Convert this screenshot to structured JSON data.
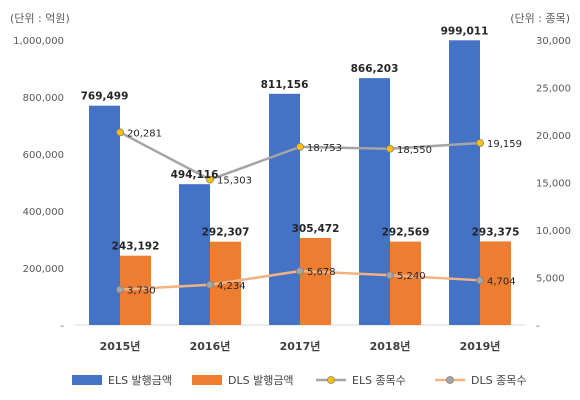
{
  "chart_data": {
    "type": "bar",
    "categories": [
      "2015년",
      "2016년",
      "2017년",
      "2018년",
      "2019년"
    ],
    "left_axis": {
      "unit_label": "(단위 : 억원)",
      "range": [
        0,
        1000000
      ],
      "ticks": [
        {
          "value": 0,
          "label": "-"
        },
        {
          "value": 200000,
          "label": "200,000"
        },
        {
          "value": 400000,
          "label": "400,000"
        },
        {
          "value": 600000,
          "label": "600,000"
        },
        {
          "value": 800000,
          "label": "800,000"
        },
        {
          "value": 1000000,
          "label": "1,000,000"
        }
      ]
    },
    "right_axis": {
      "unit_label": "(단위 : 종목)",
      "range": [
        0,
        30000
      ],
      "ticks": [
        {
          "value": 0,
          "label": "-"
        },
        {
          "value": 5000,
          "label": "5,000"
        },
        {
          "value": 10000,
          "label": "10,000"
        },
        {
          "value": 15000,
          "label": "15,000"
        },
        {
          "value": 20000,
          "label": "20,000"
        },
        {
          "value": 25000,
          "label": "25,000"
        },
        {
          "value": 30000,
          "label": "30,000"
        }
      ]
    },
    "bar_series": [
      {
        "name": "ELS 발행금액",
        "color": "#4472C4",
        "values": [
          769499,
          494116,
          811156,
          866203,
          999011
        ],
        "labels": [
          "769,499",
          "494,116",
          "811,156",
          "866,203",
          "999,011"
        ]
      },
      {
        "name": "DLS 발행금액",
        "color": "#ED7D31",
        "values": [
          243192,
          292307,
          305472,
          292569,
          293375
        ],
        "labels": [
          "243,192",
          "292,307",
          "305,472",
          "292,569",
          "293,375"
        ]
      }
    ],
    "line_series": [
      {
        "name": "ELS 종목수",
        "color": "#A5A5A5",
        "marker_fill": "#FFC000",
        "values": [
          20281,
          15303,
          18753,
          18550,
          19159
        ],
        "labels": [
          "20,281",
          "15,303",
          "18,753",
          "18,550",
          "19,159"
        ]
      },
      {
        "name": "DLS 종목수",
        "color": "#F4B183",
        "marker_fill": "#A5A5A5",
        "values": [
          3730,
          4234,
          5678,
          5240,
          4704
        ],
        "labels": [
          "3,730",
          "4,234",
          "5,678",
          "5,240",
          "4,704"
        ]
      }
    ],
    "grid": false,
    "legend_position": "bottom"
  }
}
